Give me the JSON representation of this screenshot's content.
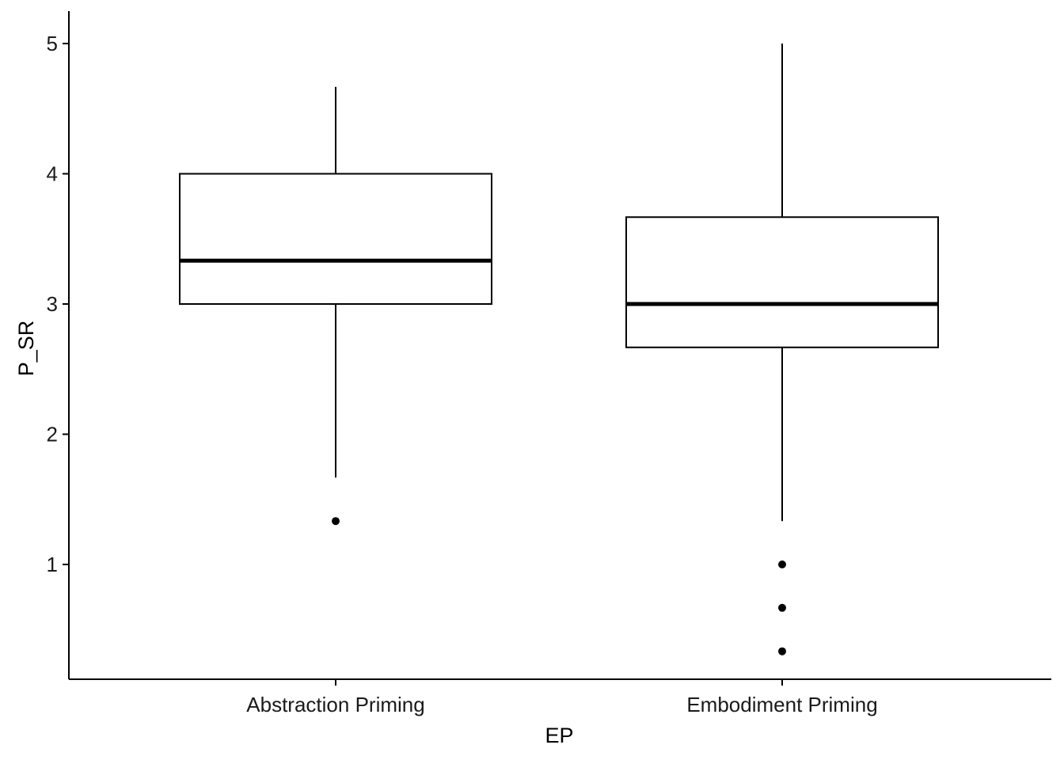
{
  "chart_data": {
    "type": "box",
    "title": "",
    "xlabel": "EP",
    "ylabel": "P_SR",
    "ylim": [
      0.2,
      5.25
    ],
    "yticks": [
      1,
      2,
      3,
      4,
      5
    ],
    "grid": false,
    "legend": "none",
    "categories": [
      "Abstraction Priming",
      "Embodiment Priming"
    ],
    "boxes": [
      {
        "category": "Abstraction Priming",
        "whisker_low": 1.667,
        "q1": 3.0,
        "median": 3.333,
        "q3": 4.0,
        "whisker_high": 4.667,
        "outliers": [
          1.333
        ]
      },
      {
        "category": "Embodiment Priming",
        "whisker_low": 1.333,
        "q1": 2.667,
        "median": 3.0,
        "q3": 3.667,
        "whisker_high": 5.0,
        "outliers": [
          1.0,
          0.667,
          0.333
        ]
      }
    ],
    "colors": {
      "line": "#000000",
      "fill": "#ffffff",
      "text": "#1a1a1a"
    }
  }
}
